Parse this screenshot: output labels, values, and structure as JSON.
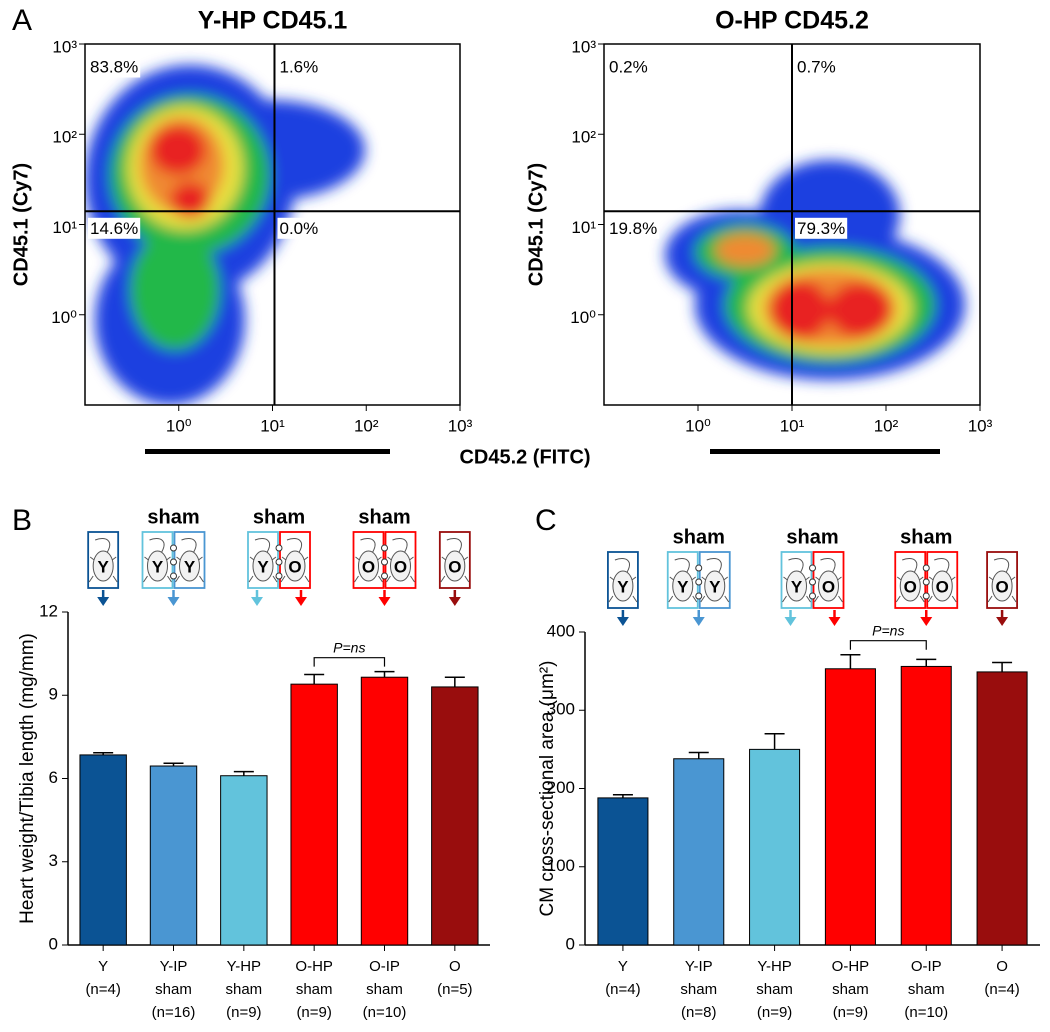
{
  "chart_data": [
    {
      "type": "flow-cytometry",
      "panel": "A",
      "title": "Y-HP CD45.1",
      "title_color": "#5cc4de",
      "ylabel": "CD45.1 (Cy7)",
      "xlabel": "CD45.2 (FITC)",
      "xscale": "log",
      "yscale": "log",
      "xlim": [
        0.1,
        1000
      ],
      "ylim": [
        0.1,
        1000
      ],
      "xticks": [
        {
          "value": 1,
          "label": "10⁰"
        },
        {
          "value": 10,
          "label": "10¹"
        },
        {
          "value": 100,
          "label": "10²"
        },
        {
          "value": 1000,
          "label": "10³"
        }
      ],
      "yticks": [
        {
          "value": 1,
          "label": "10⁰"
        },
        {
          "value": 10,
          "label": "10¹"
        },
        {
          "value": 100,
          "label": "10²"
        },
        {
          "value": 1000,
          "label": "10³"
        }
      ],
      "gate": {
        "x": 10.5,
        "y": 14
      },
      "quadrants": {
        "values": [
          83.8,
          1.6,
          14.6,
          0.0
        ],
        "value_labels": [
          "83.8%",
          "1.6%",
          "14.6%",
          "0.0%"
        ]
      }
    },
    {
      "type": "flow-cytometry",
      "title": "O-HP CD45.2",
      "title_color": "#ff1010",
      "ylabel": "CD45.1 (Cy7)",
      "xscale": "log",
      "yscale": "log",
      "xlim": [
        0.1,
        1000
      ],
      "ylim": [
        0.1,
        1000
      ],
      "xticks": [
        {
          "value": 1,
          "label": "10⁰"
        },
        {
          "value": 10,
          "label": "10¹"
        },
        {
          "value": 100,
          "label": "10²"
        },
        {
          "value": 1000,
          "label": "10³"
        }
      ],
      "yticks": [
        {
          "value": 1,
          "label": "10⁰"
        },
        {
          "value": 10,
          "label": "10¹"
        },
        {
          "value": 100,
          "label": "10²"
        },
        {
          "value": 1000,
          "label": "10³"
        }
      ],
      "gate": {
        "x": 10,
        "y": 14
      },
      "quadrants": {
        "values": [
          0.2,
          0.7,
          19.8,
          79.3
        ],
        "value_labels": [
          "0.2%",
          "0.7%",
          "19.8%",
          "79.3%"
        ]
      }
    },
    {
      "type": "bar",
      "panel": "B",
      "ylabel": "Heart weight/Tibia length (mg/mm)",
      "categories": [
        [
          "Y",
          "(n=4)"
        ],
        [
          "Y-IP",
          "sham",
          "(n=16)"
        ],
        [
          "Y-HP",
          "sham",
          "(n=9)"
        ],
        [
          "O-HP",
          "sham",
          "(n=9)"
        ],
        [
          "O-IP",
          "sham",
          "(n=10)"
        ],
        [
          "O",
          "(n=5)"
        ]
      ],
      "values": [
        6.85,
        6.45,
        6.1,
        9.4,
        9.65,
        9.3
      ],
      "errors": [
        0.08,
        0.1,
        0.15,
        0.35,
        0.2,
        0.35
      ],
      "colors": [
        "#0b5394",
        "#4a96d2",
        "#62c3dc",
        "#ff0000",
        "#ff0000",
        "#990d0d"
      ],
      "ylim": [
        0,
        12
      ],
      "yticks": [
        0,
        3,
        6,
        9,
        12
      ],
      "comparison": {
        "label": "P=ns"
      },
      "icons": [
        {
          "letters": [
            "Y"
          ]
        },
        {
          "header": "sham",
          "letters": [
            "Y",
            "Y"
          ]
        },
        {
          "header": "sham",
          "letters": [
            "Y",
            "O"
          ]
        },
        {
          "header": "sham",
          "letters": [
            "O",
            "O"
          ]
        },
        {
          "letters": [
            "O"
          ]
        }
      ]
    },
    {
      "type": "bar",
      "panel": "C",
      "ylabel": "CM cross-sectional area (μm²)",
      "categories": [
        [
          "Y",
          "(n=4)"
        ],
        [
          "Y-IP",
          "sham",
          "(n=8)"
        ],
        [
          "Y-HP",
          "sham",
          "(n=9)"
        ],
        [
          "O-HP",
          "sham",
          "(n=9)"
        ],
        [
          "O-IP",
          "sham",
          "(n=10)"
        ],
        [
          "O",
          "(n=4)"
        ]
      ],
      "values": [
        188,
        238,
        250,
        353,
        356,
        349
      ],
      "errors": [
        4,
        8,
        20,
        18,
        9,
        12
      ],
      "colors": [
        "#0b5394",
        "#4a96d2",
        "#62c3dc",
        "#ff0000",
        "#ff0000",
        "#990d0d"
      ],
      "ylim": [
        0,
        400
      ],
      "yticks": [
        0,
        100,
        200,
        300,
        400
      ],
      "comparison": {
        "label": "P=ns"
      },
      "icons": [
        {
          "letters": [
            "Y"
          ]
        },
        {
          "header": "sham",
          "letters": [
            "Y",
            "Y"
          ]
        },
        {
          "header": "sham",
          "letters": [
            "Y",
            "O"
          ]
        },
        {
          "header": "sham",
          "letters": [
            "O",
            "O"
          ]
        },
        {
          "letters": [
            "O"
          ]
        }
      ]
    }
  ]
}
